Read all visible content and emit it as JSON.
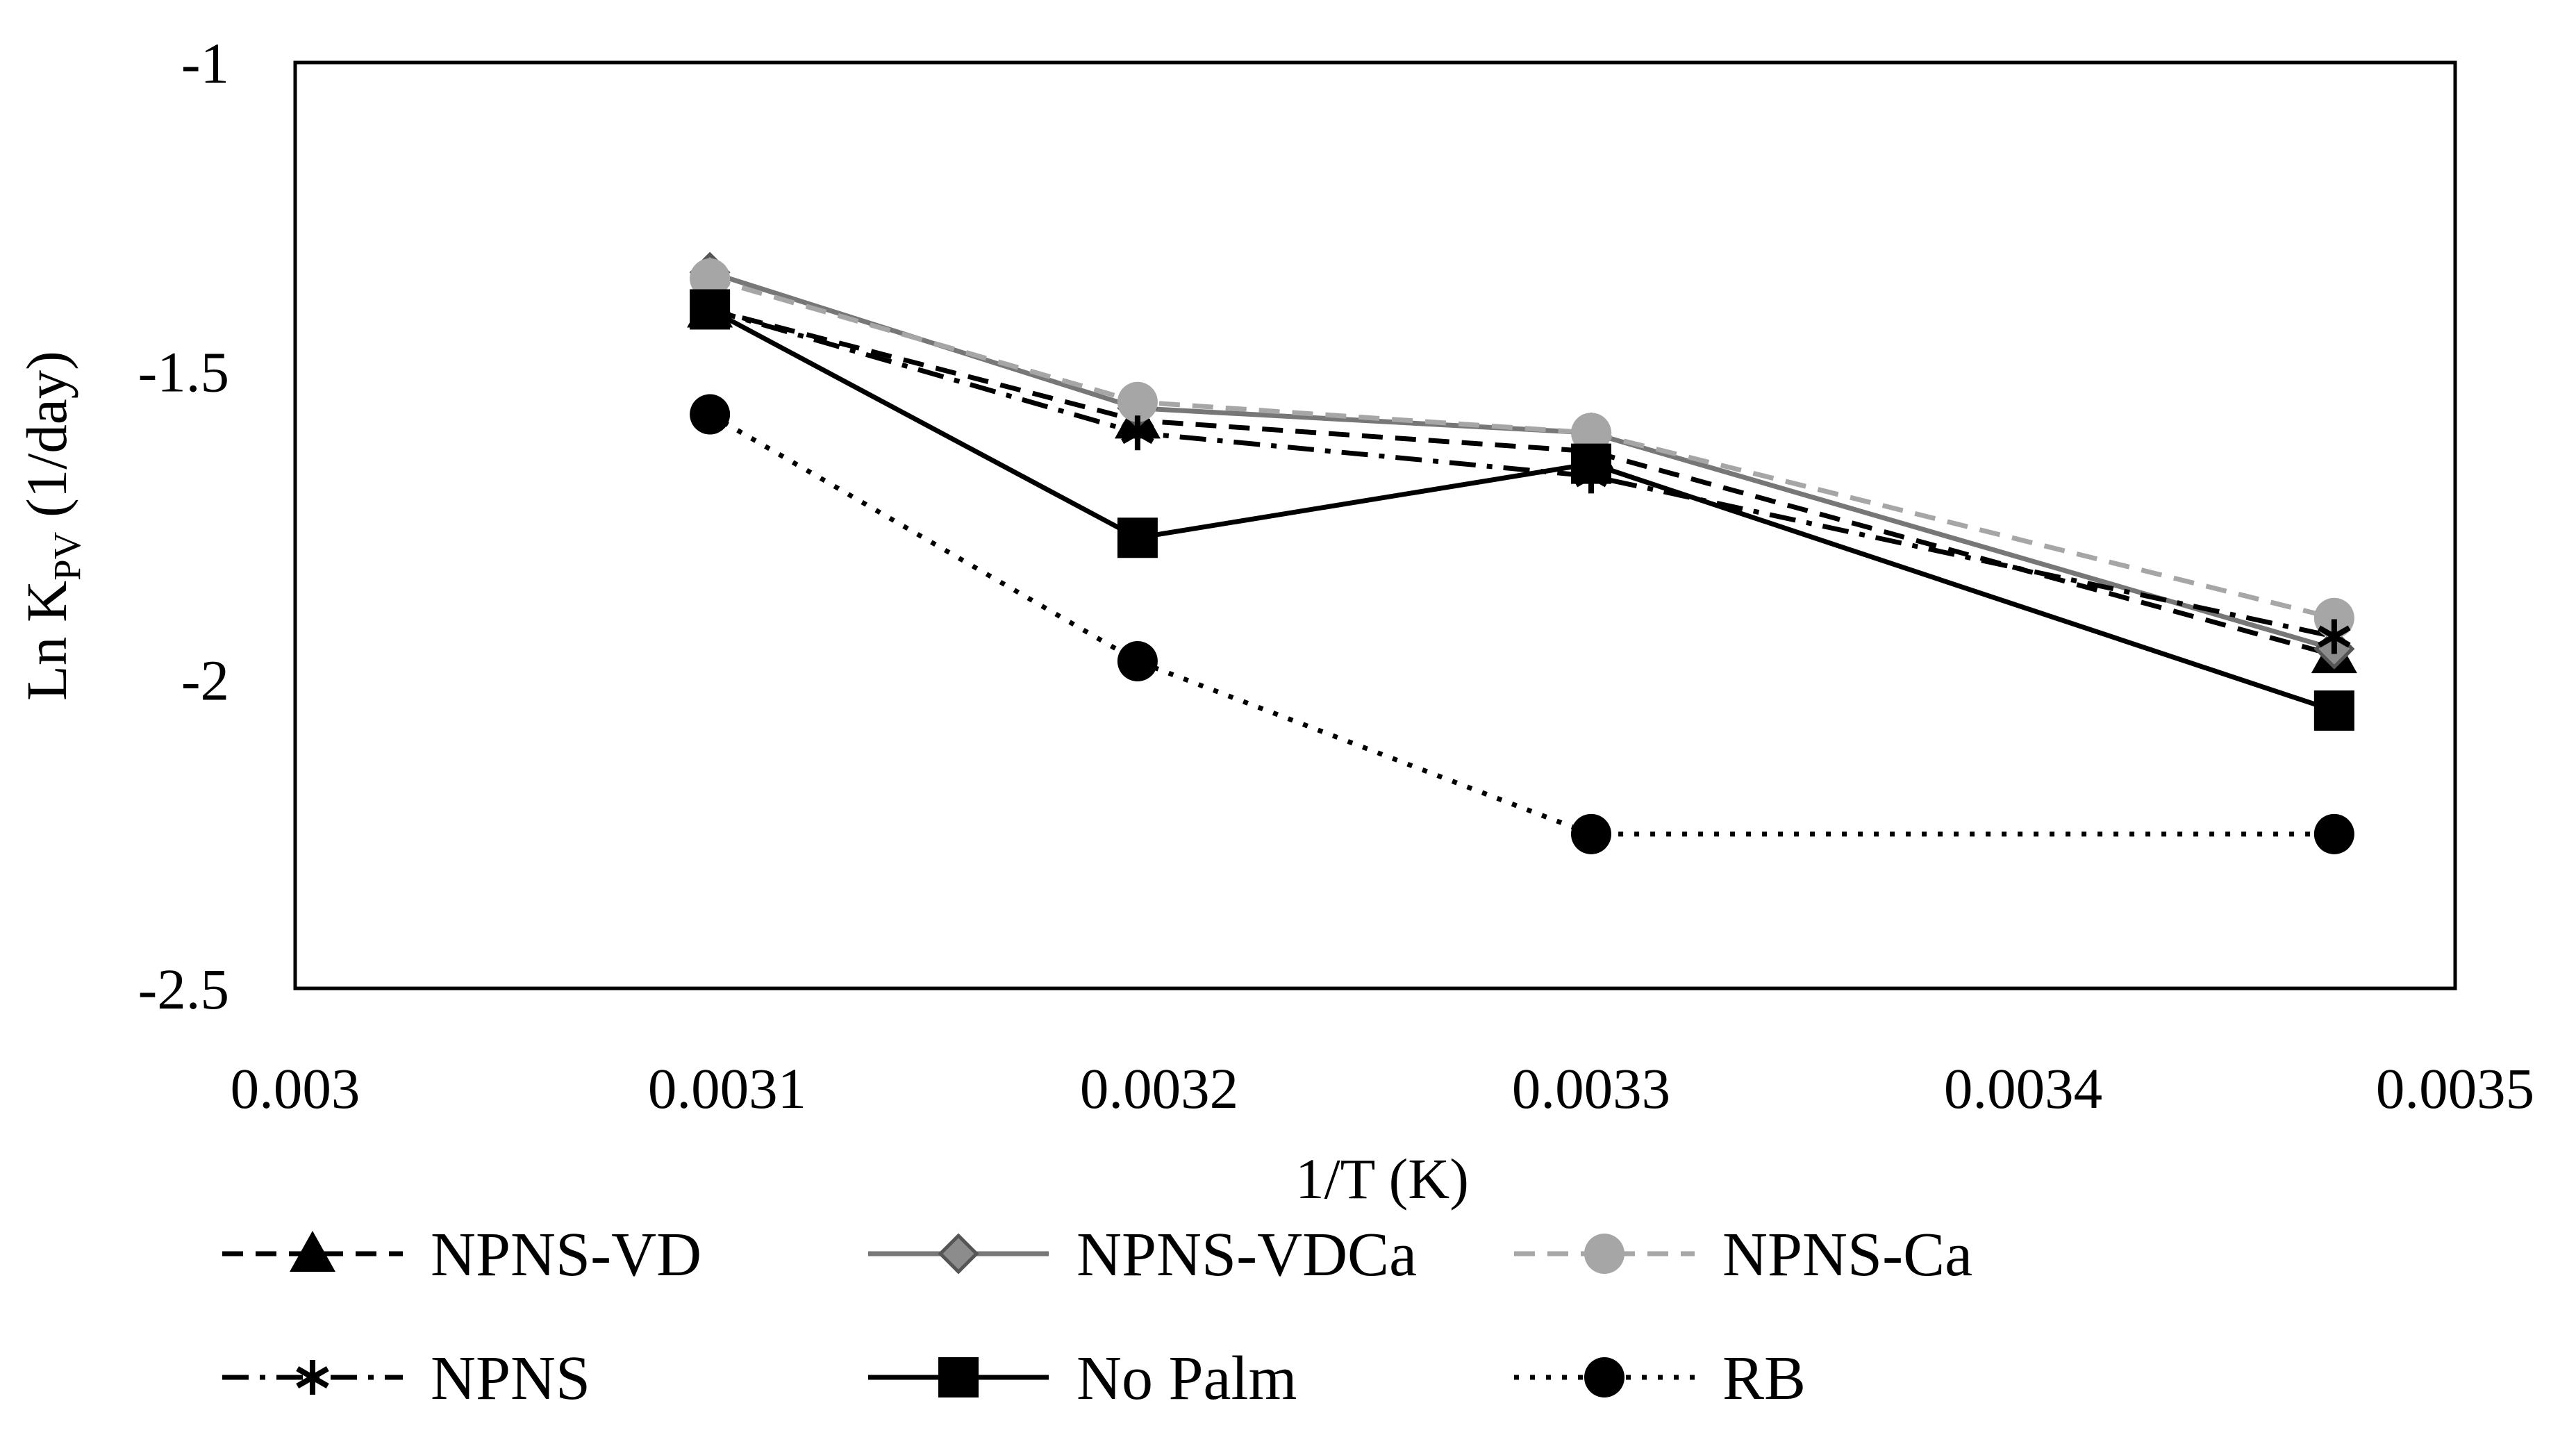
{
  "chart_data": {
    "type": "line",
    "title": "",
    "xlabel": "1/T (K)",
    "ylabel": {
      "prefix": "Ln K",
      "subscript": "PV",
      "suffix": " (1/day)"
    },
    "xlim": [
      0.003,
      0.0035
    ],
    "ylim": [
      -2.5,
      -1
    ],
    "x_ticks": [
      "0.003",
      "0.0031",
      "0.0032",
      "0.0033",
      "0.0034",
      "0.0035"
    ],
    "y_ticks": [
      "-1",
      "-1.5",
      "-2",
      "-2.5"
    ],
    "grid": false,
    "legend_position": "bottom",
    "x": [
      0.003096,
      0.003195,
      0.0033,
      0.003472
    ],
    "series": [
      {
        "name": "NPNS-VD",
        "values": [
          -1.4,
          -1.58,
          -1.63,
          -1.96
        ],
        "color": "#000000",
        "dash": "dashed",
        "marker": "triangle"
      },
      {
        "name": "NPNS-VDCa",
        "values": [
          -1.34,
          -1.56,
          -1.6,
          -1.95
        ],
        "color": "#777777",
        "dash": "solid",
        "marker": "diamond"
      },
      {
        "name": "NPNS-Ca",
        "values": [
          -1.35,
          -1.55,
          -1.6,
          -1.9
        ],
        "color": "#a6a6a6",
        "dash": "dashed",
        "marker": "circle"
      },
      {
        "name": "NPNS",
        "values": [
          -1.4,
          -1.6,
          -1.67,
          -1.93
        ],
        "color": "#000000",
        "dash": "dashdot",
        "marker": "star"
      },
      {
        "name": "No Palm",
        "values": [
          -1.4,
          -1.77,
          -1.65,
          -2.05
        ],
        "color": "#000000",
        "dash": "solid",
        "marker": "square"
      },
      {
        "name": "RB",
        "values": [
          -1.57,
          -1.97,
          -2.25,
          -2.25
        ],
        "color": "#000000",
        "dash": "dotted",
        "marker": "circle"
      }
    ]
  }
}
